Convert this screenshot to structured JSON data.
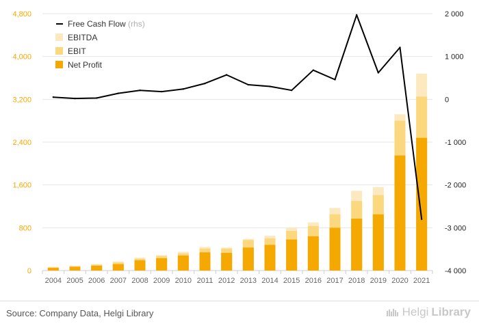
{
  "chart_data": {
    "type": "bar",
    "categories": [
      "2004",
      "2005",
      "2006",
      "2007",
      "2008",
      "2009",
      "2010",
      "2011",
      "2012",
      "2013",
      "2014",
      "2015",
      "2016",
      "2017",
      "2018",
      "2019",
      "2020",
      "2021"
    ],
    "series": [
      {
        "name": "Net Profit",
        "values": [
          50,
          70,
          90,
          120,
          190,
          230,
          280,
          340,
          330,
          430,
          480,
          580,
          640,
          800,
          970,
          1050,
          2150,
          2480
        ],
        "color": "#f5a800"
      },
      {
        "name": "EBIT",
        "values": [
          60,
          80,
          110,
          150,
          220,
          270,
          320,
          410,
          410,
          570,
          600,
          740,
          830,
          1050,
          1300,
          1410,
          2800,
          3250
        ],
        "color": "#fbd77e"
      },
      {
        "name": "EBITDA",
        "values": [
          70,
          90,
          120,
          170,
          240,
          290,
          350,
          440,
          430,
          590,
          650,
          800,
          900,
          1170,
          1490,
          1560,
          2920,
          3680
        ],
        "color": "#fde9bf"
      },
      {
        "name": "Free Cash Flow",
        "axis": "rhs",
        "type": "line",
        "values": [
          50,
          20,
          30,
          140,
          210,
          180,
          240,
          370,
          570,
          340,
          300,
          210,
          680,
          460,
          1970,
          620,
          1210,
          -2800
        ],
        "color": "#000000"
      }
    ],
    "y_left": {
      "ticks": [
        "0",
        "800",
        "1,600",
        "2,400",
        "3,200",
        "4,000",
        "4,800"
      ],
      "ylim": [
        0,
        4800
      ],
      "color": "#f5a800"
    },
    "y_right": {
      "ticks": [
        "-4 000",
        "-3 000",
        "-2 000",
        "-1 000",
        "0",
        "1 000",
        "2 000"
      ],
      "ylim": [
        -4000,
        2000
      ]
    },
    "legend": {
      "placement": "top-left",
      "items": [
        {
          "label": "Free Cash Flow",
          "suffix": "(rhs)",
          "kind": "line",
          "color": "#000000"
        },
        {
          "label": "EBITDA",
          "kind": "box",
          "color": "#fde9bf"
        },
        {
          "label": "EBIT",
          "kind": "box",
          "color": "#fbd77e"
        },
        {
          "label": "Net Profit",
          "kind": "box",
          "color": "#f5a800"
        }
      ]
    },
    "grid": true
  },
  "footer": {
    "source": "Source: Company Data, Helgi Library",
    "brand_a": "Helgi",
    "brand_b": "Library"
  }
}
